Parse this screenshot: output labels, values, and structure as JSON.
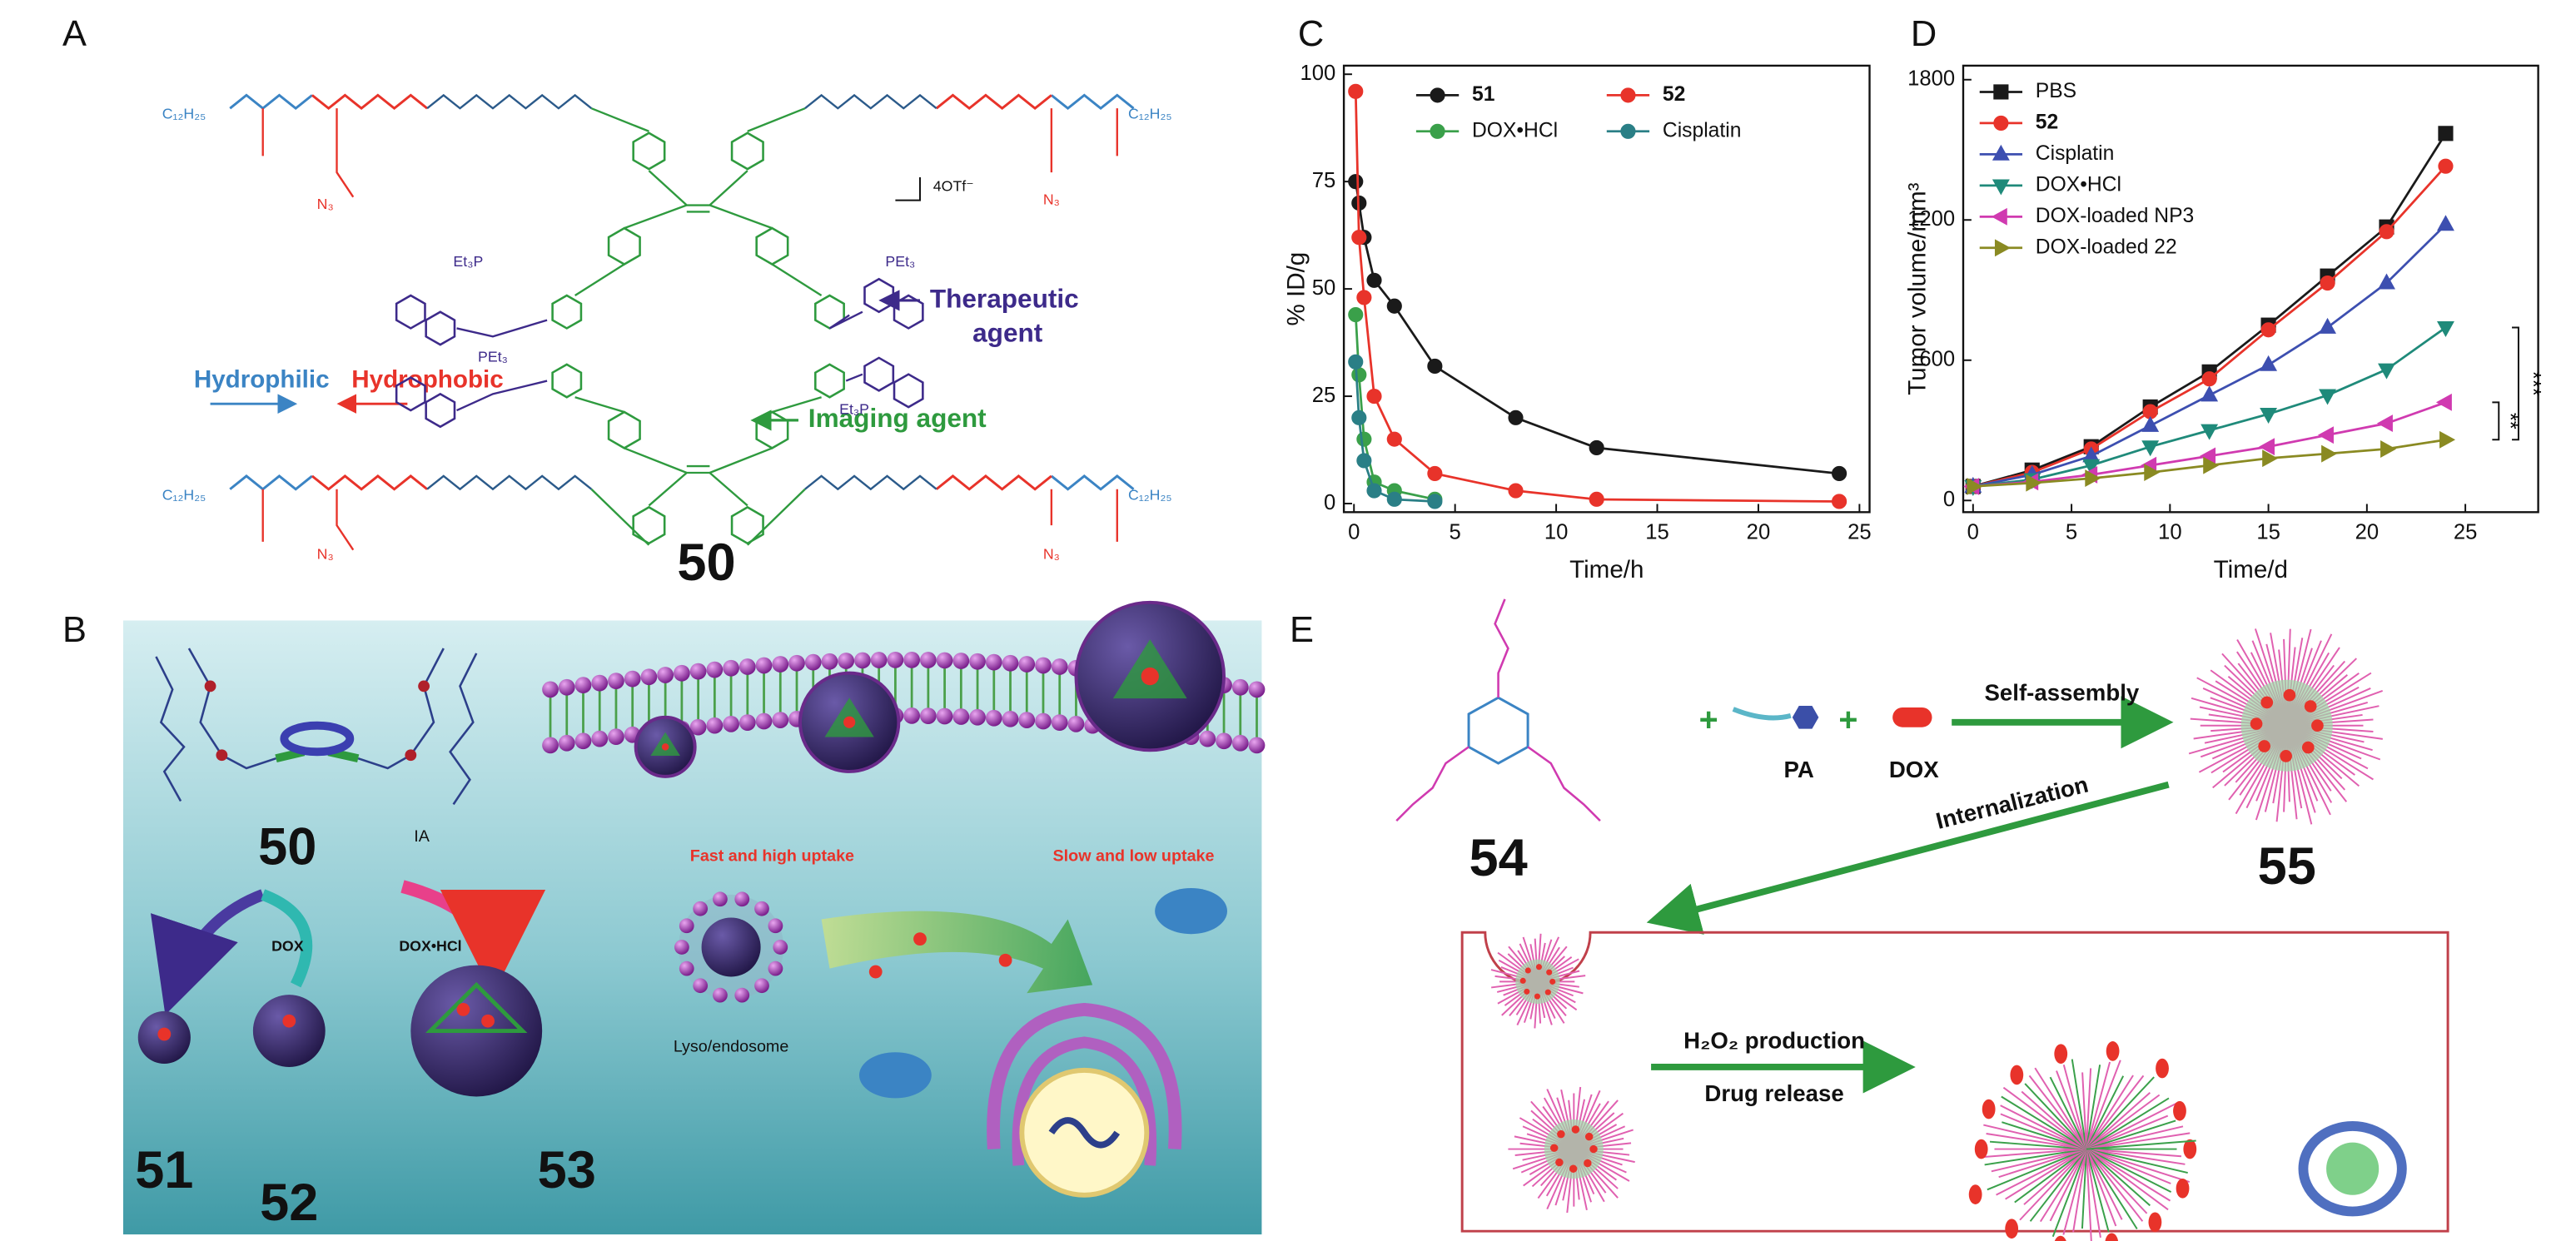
{
  "panels": {
    "A": {
      "label": "A",
      "compound": "50",
      "counterion": "4OTf⁻",
      "hydrophilic": "Hydrophilic",
      "hydrophobic": "Hydrophobic",
      "therapeutic": [
        "Therapeutic",
        "agent"
      ],
      "imaging": "Imaging agent",
      "atoms": [
        "C₁₂H₂₅",
        "C₁₂H₂₅",
        "C₁₂H₂₅",
        "C₁₂H₂₅",
        "N₃",
        "N₃",
        "N₃",
        "N₃",
        "Et₃P",
        "PEt₃",
        "PEt₃",
        "Et₃P"
      ]
    },
    "B": {
      "label": "B",
      "compounds": [
        "50",
        "51",
        "52",
        "53"
      ],
      "reagents": [
        "DOX",
        "DOX•HCl"
      ],
      "ia": "IA",
      "fast": "Fast and high uptake",
      "slow": "Slow and low uptake",
      "endosome": "Lyso/endosome"
    },
    "E": {
      "label": "E",
      "compounds": [
        "54",
        "55"
      ],
      "components": [
        "PA",
        "DOX"
      ],
      "steps": [
        "Self-assembly",
        "Internalization",
        "H₂O₂ production",
        "Drug release"
      ]
    }
  },
  "chart_data": [
    {
      "type": "line",
      "panel_label": "C",
      "x_label": "Time/h",
      "y_label": "% ID/g",
      "xlim": [
        -0.5,
        25.5
      ],
      "ylim": [
        -2,
        102
      ],
      "xticks": [
        0,
        5,
        10,
        15,
        20,
        25
      ],
      "yticks": [
        0,
        25,
        50,
        75,
        100
      ],
      "grid": false,
      "legend": "upper center",
      "series": [
        {
          "name": "51",
          "color": "#1a1a1a",
          "marker": "circle",
          "x": [
            0.083,
            0.25,
            0.5,
            1,
            2,
            4,
            8,
            12,
            24
          ],
          "values": [
            75,
            70,
            62,
            52,
            46,
            32,
            20,
            13,
            7
          ]
        },
        {
          "name": "52",
          "color": "#e8332a",
          "marker": "circle",
          "x": [
            0.083,
            0.25,
            0.5,
            1,
            2,
            4,
            8,
            12,
            24
          ],
          "values": [
            96,
            62,
            48,
            25,
            15,
            7,
            3,
            1,
            0.5
          ]
        },
        {
          "name": "DOX•HCl",
          "color": "#3aa04a",
          "marker": "circle",
          "x": [
            0.083,
            0.25,
            0.5,
            1,
            2,
            4
          ],
          "values": [
            44,
            30,
            15,
            5,
            3,
            1
          ]
        },
        {
          "name": "Cisplatin",
          "color": "#2a7f86",
          "marker": "circle",
          "x": [
            0.083,
            0.25,
            0.5,
            1,
            2,
            4
          ],
          "values": [
            33,
            20,
            10,
            3,
            1,
            0.5
          ]
        }
      ]
    },
    {
      "type": "line",
      "panel_label": "D",
      "x_label": "Time/d",
      "y_label": "Tumor volume/mm³",
      "xlim": [
        -0.5,
        28.7
      ],
      "ylim": [
        -50,
        1860
      ],
      "xticks": [
        0,
        5,
        10,
        15,
        20,
        25
      ],
      "yticks": [
        0,
        600,
        1200,
        1800
      ],
      "grid": false,
      "legend": "upper left",
      "annotations": [
        "**",
        "***"
      ],
      "series": [
        {
          "name": "PBS",
          "color": "#1a1a1a",
          "marker": "square",
          "x": [
            0,
            3,
            6,
            9,
            12,
            15,
            18,
            21,
            24
          ],
          "values": [
            60,
            130,
            230,
            400,
            550,
            750,
            960,
            1170,
            1570
          ]
        },
        {
          "name": "52",
          "color": "#e8332a",
          "marker": "circle",
          "x": [
            0,
            3,
            6,
            9,
            12,
            15,
            18,
            21,
            24
          ],
          "values": [
            60,
            120,
            220,
            380,
            520,
            730,
            930,
            1150,
            1430
          ]
        },
        {
          "name": "Cisplatin",
          "color": "#3d4fb0",
          "marker": "triangle",
          "x": [
            0,
            3,
            6,
            9,
            12,
            15,
            18,
            21,
            24
          ],
          "values": [
            60,
            110,
            190,
            320,
            450,
            580,
            740,
            930,
            1180
          ]
        },
        {
          "name": "DOX•HCl",
          "color": "#1f8a7a",
          "marker": "triangle-down",
          "x": [
            0,
            3,
            6,
            9,
            12,
            15,
            18,
            21,
            24
          ],
          "values": [
            60,
            90,
            150,
            230,
            300,
            370,
            450,
            560,
            740
          ]
        },
        {
          "name": "DOX-loaded NP3",
          "color": "#d03ab0",
          "marker": "triangle-left",
          "x": [
            0,
            3,
            6,
            9,
            12,
            15,
            18,
            21,
            24
          ],
          "values": [
            60,
            80,
            110,
            150,
            190,
            230,
            280,
            330,
            420
          ]
        },
        {
          "name": "DOX-loaded 22",
          "color": "#8a8a22",
          "marker": "triangle-right",
          "x": [
            0,
            3,
            6,
            9,
            12,
            15,
            18,
            21,
            24
          ],
          "values": [
            60,
            75,
            95,
            120,
            150,
            180,
            200,
            220,
            260
          ]
        }
      ]
    }
  ]
}
